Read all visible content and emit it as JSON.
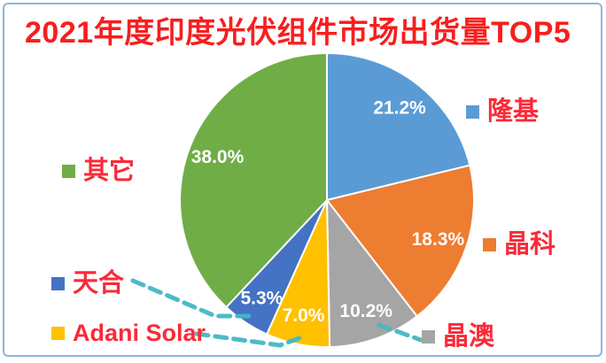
{
  "title": "2021年度印度光伏组件市场出货量TOP5",
  "chart_data": {
    "type": "pie",
    "title": "2021年度印度光伏组件市场出货量TOP5",
    "unit": "%",
    "start_angle_deg": 0,
    "direction": "clockwise",
    "label_distance": 0.8,
    "legend_position": "around",
    "slices": [
      {
        "key": "longi",
        "label": "隆基",
        "value": 21.2,
        "display": "21.2%",
        "color": "#5B9BD5"
      },
      {
        "key": "jinko",
        "label": "晶科",
        "value": 18.3,
        "display": "18.3%",
        "color": "#ED7D31"
      },
      {
        "key": "ja-solar",
        "label": "晶澳",
        "value": 10.2,
        "display": "10.2%",
        "color": "#A5A5A5"
      },
      {
        "key": "adani-solar",
        "label": "Adani Solar",
        "value": 7.0,
        "display": "7.0%",
        "color": "#FFC000"
      },
      {
        "key": "trina",
        "label": "天合",
        "value": 5.3,
        "display": "5.3%",
        "color": "#4472C4"
      },
      {
        "key": "others",
        "label": "其它",
        "value": 38.0,
        "display": "38.0%",
        "color": "#70AD47"
      }
    ],
    "annotation_color": "#45B6C4"
  },
  "colors": {
    "title_red": "#F81E1E",
    "legend_red": "#FA2A38",
    "frame_blue": "#8FB4E0",
    "percent_label": "#FFFFFF"
  }
}
